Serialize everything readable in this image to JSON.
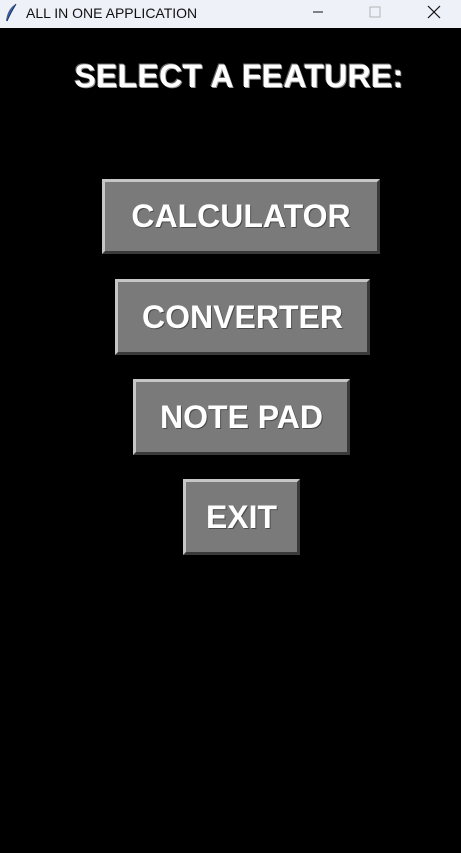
{
  "window": {
    "title": "ALL IN ONE APPLICATION",
    "icon": "feather-icon",
    "controls": {
      "minimize_icon": "minimize-icon",
      "maximize_icon": "maximize-icon",
      "close_icon": "close-icon"
    }
  },
  "main": {
    "heading": "SELECT A FEATURE:",
    "buttons": [
      {
        "label": "CALCULATOR"
      },
      {
        "label": "CONVERTER"
      },
      {
        "label": "NOTE PAD"
      },
      {
        "label": "EXIT"
      }
    ]
  },
  "colors": {
    "background": "#000000",
    "titlebar": "#eef1f8",
    "button_face": "#7a7a7a",
    "text": "#ffffff"
  }
}
